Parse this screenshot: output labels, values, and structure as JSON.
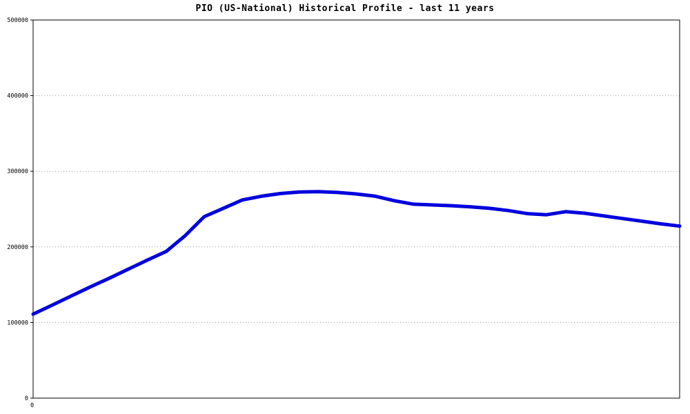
{
  "chart_data": {
    "type": "line",
    "title": "PIO (US-National) Historical Profile - last 11 years",
    "xlabel": "",
    "ylabel": "",
    "ylim": [
      0,
      500000
    ],
    "yticks": [
      0,
      100000,
      200000,
      300000,
      400000,
      500000
    ],
    "xticks": [
      "0"
    ],
    "grid": "horizontal-dotted",
    "legend": "none",
    "values": [
      111000,
      123000,
      135000,
      147000,
      158500,
      170500,
      182500,
      194000,
      215000,
      240000,
      251000,
      262000,
      267000,
      270500,
      272500,
      273000,
      272000,
      270000,
      267000,
      261000,
      256500,
      255500,
      254500,
      253000,
      251000,
      248000,
      244000,
      242500,
      246500,
      244500,
      241000,
      237500,
      234000,
      230500,
      227500
    ],
    "colors": {
      "line": "#0000dd",
      "grid": "#999999",
      "axis": "#000000",
      "text": "#000000",
      "background": "#ffffff"
    }
  }
}
